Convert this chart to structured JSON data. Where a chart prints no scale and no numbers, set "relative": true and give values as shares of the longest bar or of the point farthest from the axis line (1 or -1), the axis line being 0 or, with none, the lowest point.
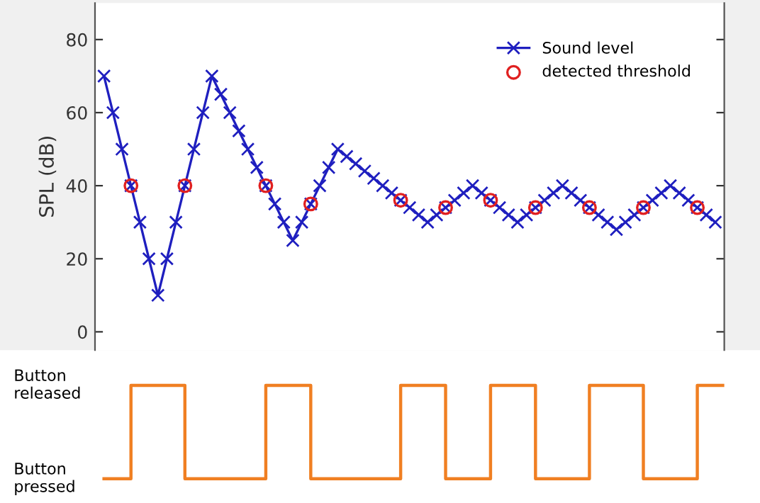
{
  "chart_data": [
    {
      "type": "line",
      "ylabel": "SPL (dB)",
      "categories": [
        null,
        null,
        null,
        null,
        null,
        null,
        null,
        null,
        null,
        null,
        null,
        null,
        null,
        null,
        null,
        null,
        null,
        null,
        null,
        null,
        null,
        null,
        null,
        null,
        null,
        null,
        null,
        null,
        null,
        null,
        null,
        null,
        null,
        null,
        null,
        null,
        null,
        null,
        null,
        null,
        null,
        null,
        null,
        null,
        null,
        null,
        null,
        null,
        null,
        null,
        null,
        null,
        null,
        null,
        null,
        null,
        null,
        null,
        null,
        null,
        null,
        null,
        null,
        null,
        null,
        null,
        null,
        null,
        null
      ],
      "series": [
        {
          "name": "Sound level",
          "type": "line",
          "marker": "cross",
          "color": "#1f1fbf",
          "values": [
            70,
            60,
            50,
            40,
            30,
            20,
            10,
            20,
            30,
            40,
            50,
            60,
            70,
            65,
            60,
            55,
            50,
            45,
            40,
            35,
            30,
            25,
            30,
            35,
            40,
            45,
            50,
            48,
            46,
            44,
            42,
            40,
            38,
            36,
            34,
            32,
            30,
            32,
            34,
            36,
            38,
            40,
            38,
            36,
            34,
            32,
            30,
            32,
            34,
            36,
            38,
            40,
            38,
            36,
            34,
            32,
            30,
            28,
            30,
            32,
            34,
            36,
            38,
            40,
            38,
            36,
            34,
            32,
            30
          ]
        },
        {
          "name": "detected threshold",
          "type": "scatter",
          "marker": "circle",
          "color": "#e02020",
          "values": [
            null,
            null,
            null,
            40,
            null,
            null,
            null,
            null,
            null,
            40,
            null,
            null,
            null,
            null,
            null,
            null,
            null,
            null,
            40,
            null,
            null,
            null,
            null,
            35,
            null,
            null,
            null,
            null,
            null,
            null,
            null,
            null,
            null,
            36,
            null,
            null,
            null,
            null,
            34,
            null,
            null,
            null,
            null,
            36,
            null,
            null,
            null,
            null,
            34,
            null,
            null,
            null,
            null,
            null,
            34,
            null,
            null,
            null,
            null,
            null,
            34,
            null,
            null,
            null,
            null,
            null,
            34,
            null,
            null
          ]
        }
      ],
      "ylim": [
        -5,
        90
      ],
      "yticks": [
        0,
        20,
        40,
        60,
        80
      ],
      "tick_labels": "y",
      "legend": "top right",
      "grid": false
    },
    {
      "type": "step",
      "categories": [
        null,
        null,
        null,
        null,
        null,
        null,
        null,
        null,
        null,
        null,
        null,
        null,
        null,
        null,
        null,
        null,
        null,
        null,
        null,
        null,
        null,
        null,
        null,
        null,
        null,
        null,
        null,
        null,
        null,
        null,
        null,
        null,
        null,
        null,
        null,
        null,
        null,
        null,
        null,
        null,
        null,
        null,
        null,
        null,
        null,
        null,
        null,
        null,
        null,
        null,
        null,
        null,
        null,
        null,
        null,
        null,
        null,
        null,
        null,
        null,
        null,
        null,
        null,
        null,
        null,
        null,
        null,
        null,
        null,
        null
      ],
      "series": [
        {
          "color": "#f07f22",
          "values": [
            0,
            0,
            0,
            1,
            1,
            1,
            1,
            1,
            1,
            0,
            0,
            0,
            0,
            0,
            0,
            0,
            0,
            0,
            1,
            1,
            1,
            1,
            1,
            0,
            0,
            0,
            0,
            0,
            0,
            0,
            0,
            0,
            0,
            1,
            1,
            1,
            1,
            1,
            0,
            0,
            0,
            0,
            0,
            1,
            1,
            1,
            1,
            1,
            0,
            0,
            0,
            0,
            0,
            0,
            1,
            1,
            1,
            1,
            1,
            1,
            0,
            0,
            0,
            0,
            0,
            0,
            1,
            1,
            1,
            1
          ]
        }
      ],
      "relative": true,
      "annotations": [
        "Button\nreleased",
        "Button\npressed"
      ],
      "tick_labels": false,
      "grid": false
    }
  ]
}
